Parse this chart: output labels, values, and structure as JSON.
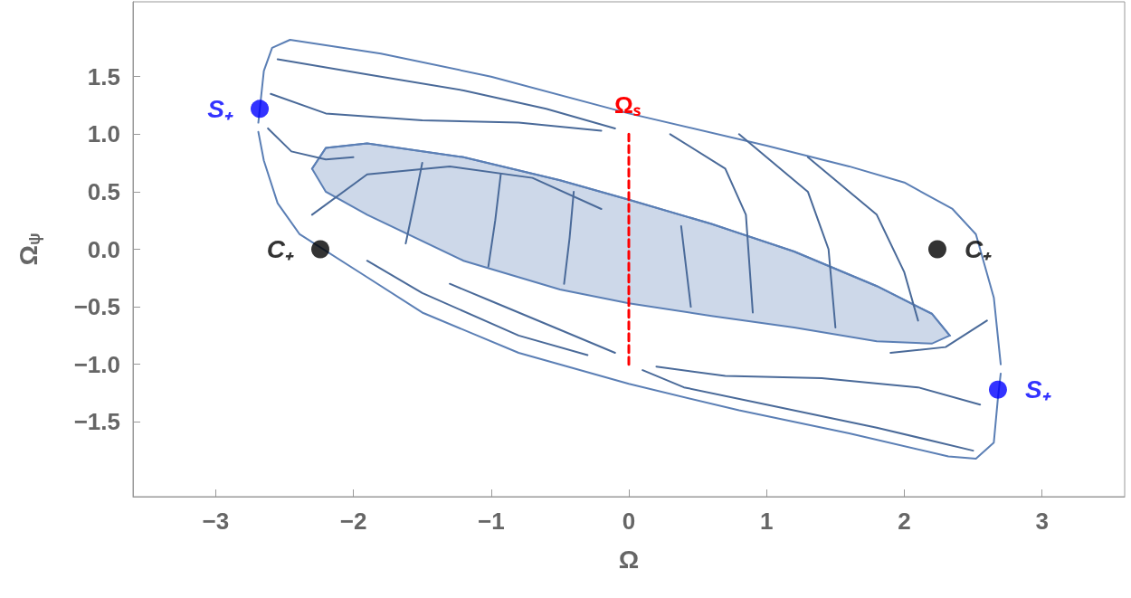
{
  "chart_data": {
    "type": "line",
    "xlabel": "Ω",
    "ylabel": "Ω$_{ψ}$",
    "xlim": [
      -3.6,
      3.6
    ],
    "ylim": [
      -2.15,
      2.15
    ],
    "xticks": [
      {
        "value": -3,
        "label": "−3"
      },
      {
        "value": -2,
        "label": "−2"
      },
      {
        "value": -1,
        "label": "−1"
      },
      0,
      1,
      2,
      3
    ],
    "yticks": [
      {
        "value": -1.5,
        "label": "−1.5"
      },
      {
        "value": -1,
        "label": "−1.0"
      },
      {
        "value": -0.5,
        "label": "−0.5"
      },
      {
        "value": 0,
        "label": "0.0"
      },
      0.5,
      {
        "value": 1,
        "label": "1.0"
      },
      1.5
    ],
    "grid": false,
    "legend": false,
    "series": [
      {
        "color": "#5b7fb5",
        "x": [
          -2.3,
          -2.2,
          -1.9,
          -1.2,
          -0.5,
          0,
          0.6,
          1.2,
          1.8,
          2.2,
          2.33
        ],
        "values": [
          0.7,
          0.88,
          0.92,
          0.8,
          0.6,
          0.43,
          0.22,
          -0.02,
          -0.32,
          -0.56,
          -0.75
        ],
        "upper": [
          0.7,
          0.88,
          0.92,
          0.8,
          0.6,
          0.43,
          0.22,
          -0.02,
          -0.32,
          -0.56,
          -0.75
        ],
        "lower": [
          0.7,
          0.5,
          0.3,
          -0.1,
          -0.35,
          -0.47,
          -0.58,
          -0.68,
          -0.8,
          -0.82,
          -0.75
        ]
      },
      {
        "color": "#5b7fb5",
        "x": [
          -2.69,
          -2.65,
          -2.59,
          -2.46,
          -1.8,
          -1.0,
          0,
          1.0,
          1.6,
          2.0,
          2.35,
          2.52,
          2.65,
          2.7
        ],
        "values": [
          1.1,
          1.55,
          1.75,
          1.82,
          1.7,
          1.5,
          1.18,
          0.9,
          0.72,
          0.58,
          0.35,
          0.13,
          -0.42,
          -1.0
        ]
      },
      {
        "color": "#5b7fb5",
        "x": [
          -2.69,
          -2.65,
          -2.55,
          -2.39,
          -1.93,
          -1.5,
          -0.8,
          0,
          0.8,
          1.6,
          2.32,
          2.52,
          2.65,
          2.68,
          2.7
        ],
        "values": [
          1.02,
          0.77,
          0.4,
          0.13,
          -0.22,
          -0.55,
          -0.9,
          -1.17,
          -1.4,
          -1.6,
          -1.8,
          -1.82,
          -1.68,
          -1.29,
          -1.08
        ]
      },
      {
        "color": "#4a6a99",
        "x": [
          -2.55,
          -1.9,
          -1.2,
          -0.6,
          -0.1
        ],
        "values": [
          1.65,
          1.52,
          1.38,
          1.22,
          1.05
        ]
      },
      {
        "color": "#4a6a99",
        "x": [
          -2.6,
          -2.2,
          -1.5,
          -0.8,
          -0.2
        ],
        "values": [
          1.35,
          1.18,
          1.12,
          1.1,
          1.03
        ]
      },
      {
        "color": "#4a6a99",
        "x": [
          -2.62,
          -2.45,
          -2.2,
          -2.0
        ],
        "values": [
          1.05,
          0.85,
          0.78,
          0.8
        ]
      },
      {
        "color": "#4a6a99",
        "x": [
          -2.3,
          -1.9,
          -1.3,
          -0.7,
          -0.2
        ],
        "values": [
          0.3,
          0.65,
          0.72,
          0.62,
          0.35
        ]
      },
      {
        "color": "#4a6a99",
        "x": [
          -1.62,
          -1.55,
          -1.5
        ],
        "values": [
          0.05,
          0.45,
          0.75
        ]
      },
      {
        "color": "#4a6a99",
        "x": [
          -1.02,
          -0.97,
          -0.93
        ],
        "values": [
          -0.15,
          0.25,
          0.65
        ]
      },
      {
        "color": "#4a6a99",
        "x": [
          -0.47,
          -0.43,
          -0.4
        ],
        "values": [
          -0.3,
          0.1,
          0.5
        ]
      },
      {
        "color": "#4a6a99",
        "x": [
          0.38,
          0.42,
          0.45
        ],
        "values": [
          0.2,
          -0.2,
          -0.5
        ]
      },
      {
        "color": "#4a6a99",
        "x": [
          0.3,
          0.7,
          0.85,
          0.9
        ],
        "values": [
          1.0,
          0.7,
          0.3,
          -0.55
        ]
      },
      {
        "color": "#4a6a99",
        "x": [
          0.8,
          1.3,
          1.45,
          1.5
        ],
        "values": [
          1.0,
          0.5,
          0.0,
          -0.68
        ]
      },
      {
        "color": "#4a6a99",
        "x": [
          1.3,
          1.8,
          2.0,
          2.1
        ],
        "values": [
          0.8,
          0.3,
          -0.2,
          -0.62
        ]
      },
      {
        "color": "#4a6a99",
        "x": [
          0.1,
          0.4,
          1.0,
          1.8,
          2.5
        ],
        "values": [
          -1.05,
          -1.2,
          -1.35,
          -1.55,
          -1.75
        ]
      },
      {
        "color": "#4a6a99",
        "x": [
          0.2,
          0.7,
          1.4,
          2.1,
          2.55
        ],
        "values": [
          -1.02,
          -1.1,
          -1.12,
          -1.2,
          -1.35
        ]
      },
      {
        "color": "#4a6a99",
        "x": [
          1.9,
          2.3,
          2.6
        ],
        "values": [
          -0.9,
          -0.85,
          -0.62
        ]
      },
      {
        "color": "#4a6a99",
        "x": [
          -1.9,
          -1.5,
          -0.8,
          -0.3
        ],
        "values": [
          -0.1,
          -0.38,
          -0.75,
          -0.92
        ]
      },
      {
        "color": "#4a6a99",
        "x": [
          -1.3,
          -1.0,
          -0.5,
          -0.1
        ],
        "values": [
          -0.3,
          -0.45,
          -0.7,
          -0.9
        ]
      },
      {
        "name": "Ωₛ",
        "color": "#ff0000",
        "line_style": "dashed",
        "x": [
          0,
          0
        ],
        "values": [
          -1,
          1
        ]
      },
      {
        "type": "scatter",
        "name": "S₊",
        "color": "#0000ff",
        "marker": "circle",
        "x": [
          -2.68,
          2.68
        ],
        "values": [
          1.22,
          -1.22
        ]
      },
      {
        "type": "scatter",
        "name": "C₊",
        "color": "#000000",
        "marker": "circle",
        "x": [
          -2.24,
          2.24
        ],
        "values": [
          0,
          0
        ]
      }
    ]
  }
}
